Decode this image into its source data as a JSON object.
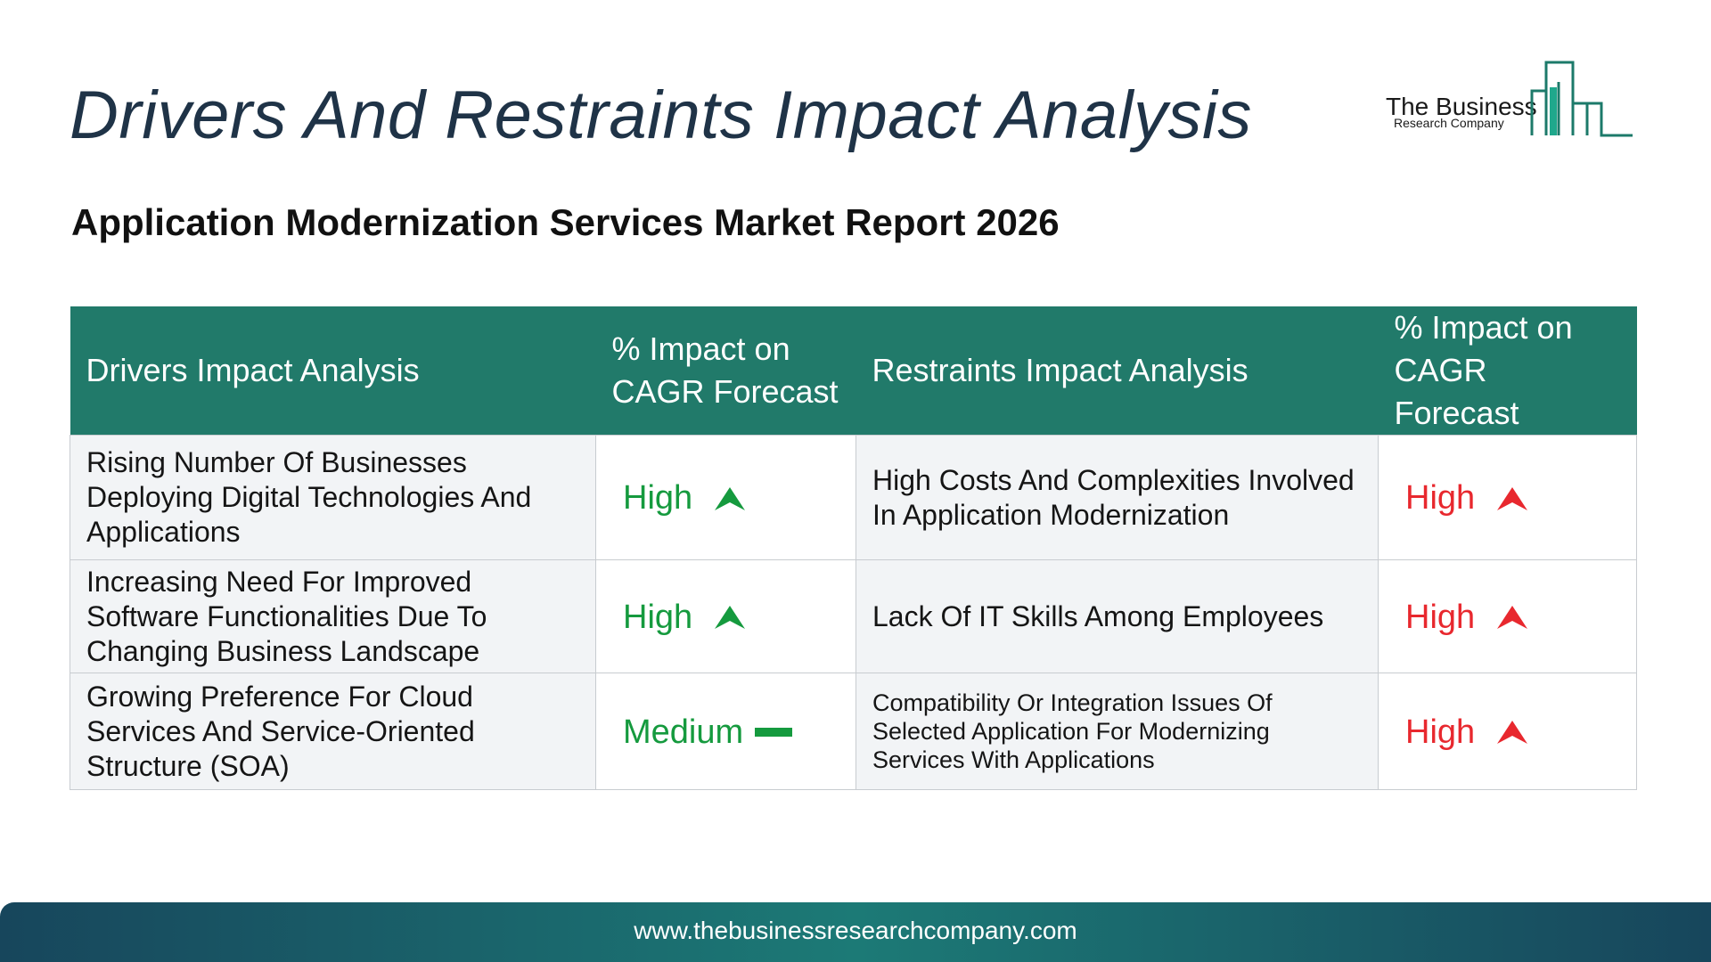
{
  "title": "Drivers And Restraints Impact Analysis",
  "subtitle": "Application Modernization Services Market Report 2026",
  "logo": {
    "line1": "The Business",
    "line2": "Research Company"
  },
  "colors": {
    "header": "#217a6a",
    "driver_impact": "#159a3e",
    "restraint_impact": "#e8282e",
    "title": "#1f3347"
  },
  "table": {
    "headers": {
      "drivers": "Drivers Impact Analysis",
      "drivers_impact": "% Impact on CAGR Forecast",
      "restraints": "Restraints Impact Analysis",
      "restraints_impact": "% Impact on CAGR Forecast"
    },
    "rows": [
      {
        "driver": "Rising Number Of Businesses Deploying Digital Technologies And Applications",
        "driver_impact": "High",
        "driver_icon": "up-arrow-icon",
        "restraint": "High Costs And Complexities Involved In Application Modernization",
        "restraint_impact": "High",
        "restraint_icon": "up-arrow-icon"
      },
      {
        "driver": "Increasing Need For Improved Software Functionalities Due To Changing Business Landscape",
        "driver_impact": "High",
        "driver_icon": "up-arrow-icon",
        "restraint": "Lack Of IT Skills Among Employees",
        "restraint_impact": "High",
        "restraint_icon": "up-arrow-icon"
      },
      {
        "driver": "Growing Preference For Cloud Services And Service-Oriented Structure (SOA)",
        "driver_impact": "Medium",
        "driver_icon": "dash-icon",
        "restraint": "Compatibility Or Integration Issues Of Selected Application For Modernizing Services With Applications",
        "restraint_impact": "High",
        "restraint_icon": "up-arrow-icon"
      }
    ]
  },
  "footer": {
    "url": "www.thebusinessresearchcompany.com"
  }
}
